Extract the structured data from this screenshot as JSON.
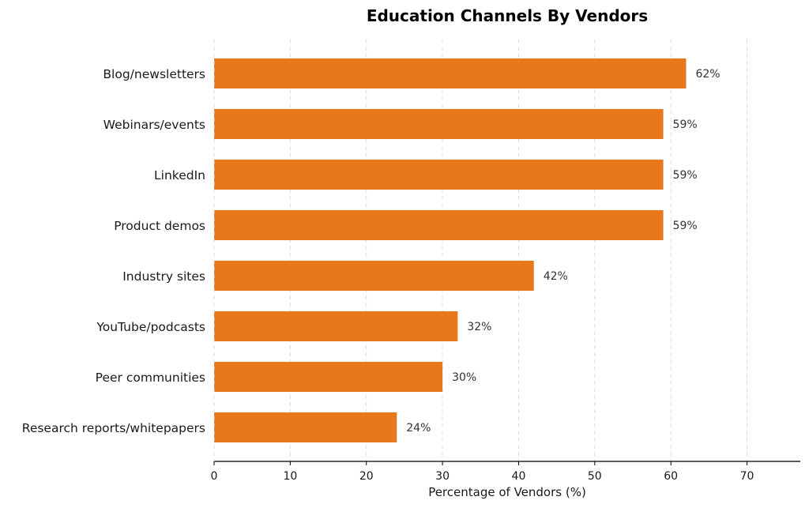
{
  "chart_data": {
    "type": "bar",
    "orientation": "horizontal",
    "title": "Education Channels By Vendors",
    "xlabel": "Percentage of Vendors (%)",
    "ylabel": "",
    "categories": [
      "Blog/newsletters",
      "Webinars/events",
      "LinkedIn",
      "Product demos",
      "Industry sites",
      "YouTube/podcasts",
      "Peer communities",
      "Research reports/whitepapers"
    ],
    "values": [
      62,
      59,
      59,
      59,
      42,
      32,
      30,
      24
    ],
    "value_labels": [
      "62%",
      "59%",
      "59%",
      "59%",
      "42%",
      "32%",
      "30%",
      "24%"
    ],
    "xlim": [
      0,
      77
    ],
    "xticks": [
      "0",
      "10",
      "20",
      "30",
      "40",
      "50",
      "60",
      "70"
    ],
    "grid": "vertical dashed",
    "bar_color": "#E8781C"
  }
}
